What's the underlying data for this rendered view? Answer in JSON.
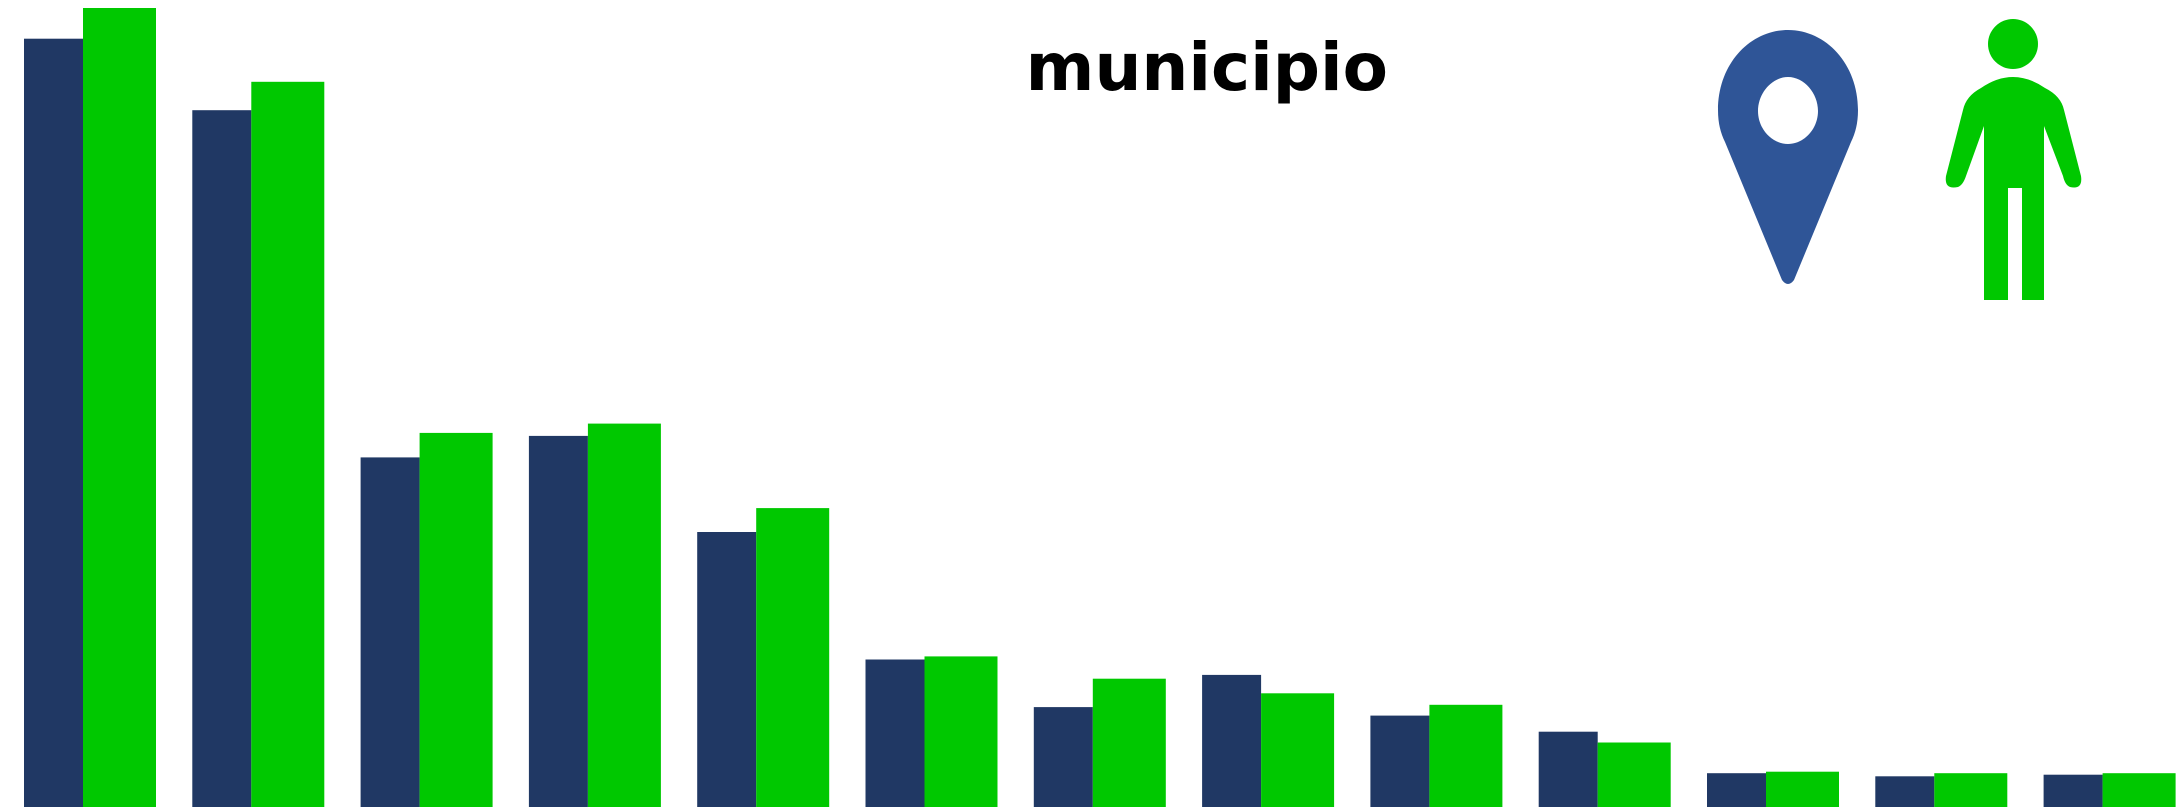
{
  "title": {
    "line1": "",
    "line2": "municipio"
  },
  "legend": [
    {
      "icon": "map-pin-icon",
      "color": "#2f5597"
    },
    {
      "icon": "person-icon",
      "color": "#00c800"
    }
  ],
  "chart_data": {
    "type": "bar",
    "categories": [
      "",
      "",
      "",
      "",
      "",
      "",
      "",
      "",
      "",
      "",
      "",
      "",
      ""
    ],
    "series": [
      {
        "color": "#203864",
        "values": [
          100,
          90.7,
          45.5,
          48.3,
          35.8,
          19.2,
          13.0,
          17.2,
          11.9,
          9.8,
          4.4,
          4.0,
          4.2
        ]
      },
      {
        "color": "#00c800",
        "values": [
          104,
          94.4,
          48.7,
          49.9,
          38.9,
          19.6,
          16.7,
          14.8,
          13.3,
          8.4,
          4.6,
          4.4,
          4.4
        ]
      }
    ],
    "ylim": [
      0,
      104
    ],
    "grid": false,
    "legend_position": "top-right"
  }
}
